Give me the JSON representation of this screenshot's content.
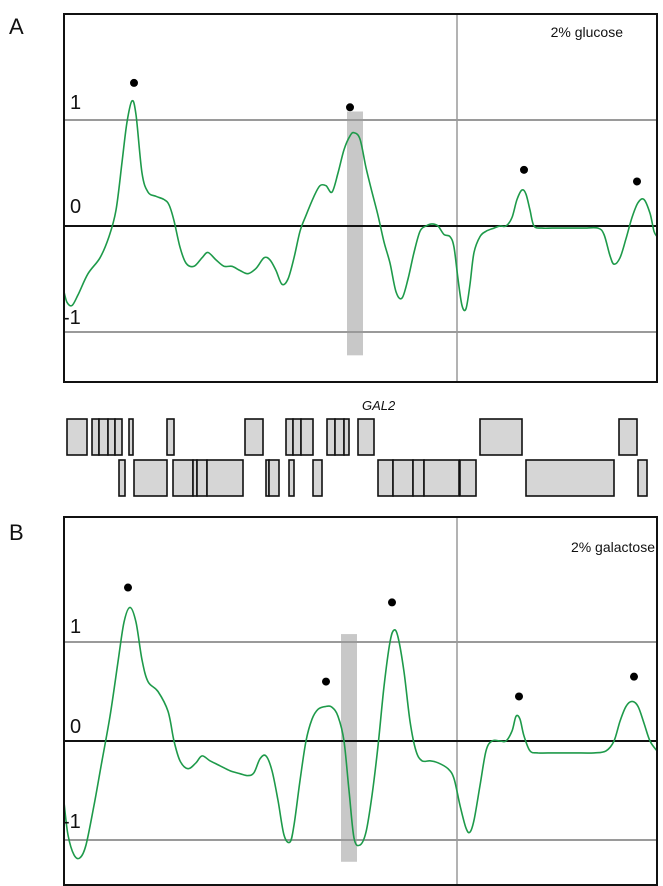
{
  "colors": {
    "signal": "#1e9a4a",
    "frame": "#111111",
    "gridline": "#9a9a9a",
    "zeroline": "#111111",
    "highlight_band": "#c8c8c8",
    "gene_box_fill": "#d6d6d6",
    "peak_marker": "#000000"
  },
  "gene_track": {
    "label": "GAL2",
    "top_row_x": [
      [
        0,
        20
      ],
      [
        25,
        32
      ],
      [
        32,
        41
      ],
      [
        41,
        48
      ],
      [
        48,
        55
      ],
      [
        62,
        66
      ],
      [
        100,
        107
      ],
      [
        178,
        196
      ],
      [
        219,
        226
      ],
      [
        226,
        234
      ],
      [
        234,
        246
      ],
      [
        260,
        268
      ],
      [
        268,
        277
      ],
      [
        277,
        282
      ],
      [
        291,
        307
      ],
      [
        413,
        455
      ],
      [
        552,
        570
      ]
    ],
    "bottom_row_x": [
      [
        52,
        58
      ],
      [
        67,
        100
      ],
      [
        106,
        126
      ],
      [
        126,
        130
      ],
      [
        130,
        140
      ],
      [
        140,
        176
      ],
      [
        199,
        202
      ],
      [
        202,
        212
      ],
      [
        222,
        227
      ],
      [
        246,
        255
      ],
      [
        311,
        326
      ],
      [
        326,
        346
      ],
      [
        346,
        357
      ],
      [
        357,
        392
      ],
      [
        393,
        409
      ],
      [
        459,
        547
      ],
      [
        571,
        580
      ]
    ]
  },
  "chart_data": [
    {
      "type": "line",
      "panel_label": "A",
      "condition_label": "2% glucose",
      "ylim": [
        -1.5,
        1.5
      ],
      "yticks": [
        1,
        0,
        -1
      ],
      "ytick_labels": [
        "1",
        "0",
        "-1"
      ],
      "xlim": [
        0,
        593
      ],
      "vertical_marker_x": 393,
      "highlight_band": [
        283,
        299
      ],
      "peak_markers": [
        [
          70,
          1.35
        ],
        [
          286,
          1.12
        ],
        [
          460,
          0.53
        ],
        [
          573,
          0.42
        ]
      ],
      "series": [
        {
          "points": [
            [
              0,
              -0.62
            ],
            [
              3,
              -0.72
            ],
            [
              8,
              -0.75
            ],
            [
              14,
              -0.65
            ],
            [
              24,
              -0.45
            ],
            [
              36,
              -0.3
            ],
            [
              45,
              -0.1
            ],
            [
              52,
              0.15
            ],
            [
              58,
              0.6
            ],
            [
              63,
              0.98
            ],
            [
              68,
              1.18
            ],
            [
              72,
              1.05
            ],
            [
              78,
              0.5
            ],
            [
              84,
              0.32
            ],
            [
              92,
              0.28
            ],
            [
              100,
              0.25
            ],
            [
              105,
              0.2
            ],
            [
              110,
              0.05
            ],
            [
              116,
              -0.2
            ],
            [
              122,
              -0.35
            ],
            [
              130,
              -0.38
            ],
            [
              138,
              -0.3
            ],
            [
              144,
              -0.25
            ],
            [
              152,
              -0.32
            ],
            [
              160,
              -0.38
            ],
            [
              168,
              -0.38
            ],
            [
              176,
              -0.42
            ],
            [
              184,
              -0.45
            ],
            [
              192,
              -0.4
            ],
            [
              200,
              -0.3
            ],
            [
              206,
              -0.32
            ],
            [
              212,
              -0.42
            ],
            [
              218,
              -0.55
            ],
            [
              224,
              -0.5
            ],
            [
              230,
              -0.3
            ],
            [
              236,
              -0.05
            ],
            [
              242,
              0.1
            ],
            [
              250,
              0.28
            ],
            [
              256,
              0.38
            ],
            [
              262,
              0.38
            ],
            [
              268,
              0.32
            ],
            [
              274,
              0.5
            ],
            [
              280,
              0.72
            ],
            [
              286,
              0.85
            ],
            [
              290,
              0.88
            ],
            [
              296,
              0.82
            ],
            [
              302,
              0.55
            ],
            [
              308,
              0.32
            ],
            [
              314,
              0.1
            ],
            [
              320,
              -0.15
            ],
            [
              326,
              -0.35
            ],
            [
              332,
              -0.62
            ],
            [
              338,
              -0.68
            ],
            [
              344,
              -0.5
            ],
            [
              350,
              -0.25
            ],
            [
              356,
              -0.05
            ],
            [
              362,
              0.0
            ],
            [
              368,
              0.02
            ],
            [
              374,
              0.0
            ],
            [
              380,
              -0.08
            ],
            [
              386,
              -0.1
            ],
            [
              390,
              -0.2
            ],
            [
              394,
              -0.5
            ],
            [
              398,
              -0.75
            ],
            [
              402,
              -0.78
            ],
            [
              406,
              -0.55
            ],
            [
              410,
              -0.25
            ],
            [
              416,
              -0.1
            ],
            [
              422,
              -0.05
            ],
            [
              430,
              -0.02
            ],
            [
              436,
              0.0
            ],
            [
              442,
              0.0
            ],
            [
              448,
              0.08
            ],
            [
              453,
              0.25
            ],
            [
              458,
              0.34
            ],
            [
              462,
              0.3
            ],
            [
              466,
              0.15
            ],
            [
              470,
              0.0
            ],
            [
              478,
              -0.02
            ],
            [
              488,
              -0.02
            ],
            [
              500,
              -0.02
            ],
            [
              510,
              -0.02
            ],
            [
              520,
              -0.02
            ],
            [
              534,
              -0.02
            ],
            [
              540,
              -0.08
            ],
            [
              546,
              -0.28
            ],
            [
              550,
              -0.36
            ],
            [
              556,
              -0.3
            ],
            [
              562,
              -0.12
            ],
            [
              568,
              0.08
            ],
            [
              574,
              0.22
            ],
            [
              580,
              0.25
            ],
            [
              586,
              0.12
            ],
            [
              590,
              -0.05
            ],
            [
              593,
              -0.1
            ]
          ]
        }
      ]
    },
    {
      "type": "line",
      "panel_label": "B",
      "condition_label": "2% galactose",
      "ylim": [
        -1.85,
        1.85
      ],
      "yticks": [
        1,
        0,
        -1
      ],
      "ytick_labels": [
        "1",
        "0",
        "-1"
      ],
      "xlim": [
        0,
        593
      ],
      "vertical_marker_x": 393,
      "highlight_band": [
        277,
        293
      ],
      "peak_markers": [
        [
          64,
          1.55
        ],
        [
          262,
          0.6
        ],
        [
          328,
          1.4
        ],
        [
          455,
          0.45
        ],
        [
          570,
          0.65
        ]
      ],
      "series": [
        {
          "points": [
            [
              0,
              -0.62
            ],
            [
              4,
              -0.95
            ],
            [
              10,
              -1.15
            ],
            [
              16,
              -1.18
            ],
            [
              22,
              -1.05
            ],
            [
              30,
              -0.65
            ],
            [
              38,
              -0.2
            ],
            [
              46,
              0.25
            ],
            [
              54,
              0.8
            ],
            [
              60,
              1.2
            ],
            [
              66,
              1.35
            ],
            [
              72,
              1.2
            ],
            [
              78,
              0.82
            ],
            [
              84,
              0.6
            ],
            [
              94,
              0.5
            ],
            [
              104,
              0.3
            ],
            [
              110,
              0.0
            ],
            [
              116,
              -0.2
            ],
            [
              124,
              -0.28
            ],
            [
              132,
              -0.22
            ],
            [
              138,
              -0.15
            ],
            [
              146,
              -0.2
            ],
            [
              156,
              -0.25
            ],
            [
              166,
              -0.3
            ],
            [
              176,
              -0.33
            ],
            [
              184,
              -0.35
            ],
            [
              190,
              -0.32
            ],
            [
              196,
              -0.18
            ],
            [
              202,
              -0.15
            ],
            [
              208,
              -0.3
            ],
            [
              214,
              -0.6
            ],
            [
              220,
              -0.95
            ],
            [
              226,
              -1.02
            ],
            [
              230,
              -0.85
            ],
            [
              236,
              -0.4
            ],
            [
              242,
              0.0
            ],
            [
              248,
              0.22
            ],
            [
              254,
              0.32
            ],
            [
              262,
              0.35
            ],
            [
              268,
              0.34
            ],
            [
              274,
              0.25
            ],
            [
              280,
              0.0
            ],
            [
              285,
              -0.5
            ],
            [
              290,
              -0.98
            ],
            [
              296,
              -1.05
            ],
            [
              302,
              -0.92
            ],
            [
              308,
              -0.55
            ],
            [
              314,
              -0.05
            ],
            [
              320,
              0.55
            ],
            [
              326,
              1.0
            ],
            [
              330,
              1.12
            ],
            [
              334,
              1.05
            ],
            [
              340,
              0.7
            ],
            [
              346,
              0.2
            ],
            [
              352,
              -0.1
            ],
            [
              358,
              -0.2
            ],
            [
              366,
              -0.2
            ],
            [
              374,
              -0.22
            ],
            [
              384,
              -0.28
            ],
            [
              390,
              -0.38
            ],
            [
              396,
              -0.65
            ],
            [
              402,
              -0.88
            ],
            [
              406,
              -0.92
            ],
            [
              410,
              -0.8
            ],
            [
              416,
              -0.45
            ],
            [
              422,
              -0.1
            ],
            [
              428,
              0.0
            ],
            [
              436,
              0.0
            ],
            [
              442,
              0.0
            ],
            [
              448,
              0.1
            ],
            [
              452,
              0.25
            ],
            [
              456,
              0.22
            ],
            [
              460,
              0.05
            ],
            [
              466,
              -0.1
            ],
            [
              474,
              -0.12
            ],
            [
              490,
              -0.12
            ],
            [
              510,
              -0.12
            ],
            [
              530,
              -0.12
            ],
            [
              542,
              -0.1
            ],
            [
              550,
              0.0
            ],
            [
              556,
              0.2
            ],
            [
              562,
              0.35
            ],
            [
              568,
              0.4
            ],
            [
              574,
              0.35
            ],
            [
              580,
              0.18
            ],
            [
              586,
              0.0
            ],
            [
              593,
              -0.1
            ]
          ]
        }
      ]
    }
  ]
}
